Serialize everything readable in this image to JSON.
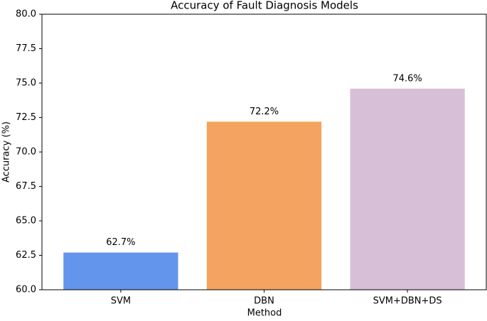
{
  "chart_data": {
    "type": "bar",
    "title": "Accuracy of Fault Diagnosis Models",
    "x_label": "Method",
    "y_label": "Accuracy (%)",
    "categories": [
      "SVM",
      "DBN",
      "SVM+DBN+DS"
    ],
    "values": [
      62.7,
      72.2,
      74.6
    ],
    "value_labels": [
      "62.7%",
      "72.2%",
      "74.6%"
    ],
    "colors": [
      "#6495ed",
      "#f4a460",
      "#d8bfd8"
    ],
    "ylim": [
      60,
      80
    ],
    "yticks": [
      {
        "value": 60,
        "label": "60.0"
      },
      62.5,
      {
        "value": 65,
        "label": "65.0"
      },
      67.5,
      {
        "value": 70,
        "label": "70.0"
      },
      72.5,
      {
        "value": 75,
        "label": "75.0"
      },
      77.5,
      {
        "value": 80,
        "label": "80.0"
      }
    ],
    "grid": false
  }
}
